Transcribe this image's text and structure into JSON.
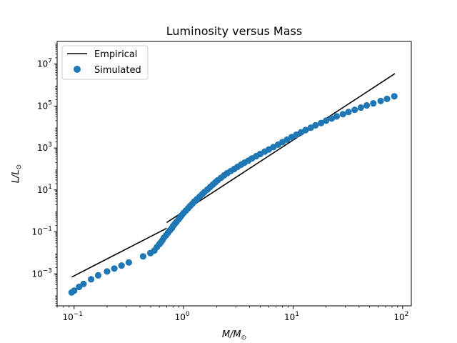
{
  "chart_data": {
    "type": "scatter",
    "title": "Luminosity versus Mass",
    "xlabel": "M/M⊙",
    "ylabel": "L/L⊙",
    "xscale": "log",
    "yscale": "log",
    "xlim": [
      0.07,
      120
    ],
    "ylim": [
      3e-05,
      120000000
    ],
    "x_ticks": [
      {
        "value": 0.1,
        "base": "10",
        "exp": "−1"
      },
      {
        "value": 1,
        "base": "10",
        "exp": "0"
      },
      {
        "value": 10,
        "base": "10",
        "exp": "1"
      },
      {
        "value": 100,
        "base": "10",
        "exp": "2"
      }
    ],
    "y_ticks": [
      {
        "value": 0.001,
        "base": "10",
        "exp": "−3"
      },
      {
        "value": 0.1,
        "base": "10",
        "exp": "−1"
      },
      {
        "value": 10,
        "base": "10",
        "exp": "1"
      },
      {
        "value": 1000,
        "base": "10",
        "exp": "3"
      },
      {
        "value": 100000,
        "base": "10",
        "exp": "5"
      },
      {
        "value": 10000000,
        "base": "10",
        "exp": "7"
      }
    ],
    "legend": {
      "position": "top-left"
    },
    "series": [
      {
        "name": "Empirical",
        "kind": "line",
        "color": "#000000",
        "segments": [
          [
            [
              0.095,
              0.0007
            ],
            [
              0.7,
              0.15
            ]
          ],
          [
            [
              0.7,
              0.28
            ],
            [
              85,
              3500000
            ]
          ]
        ]
      },
      {
        "name": "Simulated",
        "kind": "scatter",
        "color": "#1f77b4",
        "points": [
          [
            0.095,
            0.00013
          ],
          [
            0.1,
            0.00016
          ],
          [
            0.111,
            0.00024
          ],
          [
            0.122,
            0.00033
          ],
          [
            0.143,
            0.00055
          ],
          [
            0.166,
            0.00085
          ],
          [
            0.2,
            0.0013
          ],
          [
            0.233,
            0.0018
          ],
          [
            0.271,
            0.0025
          ],
          [
            0.316,
            0.0035
          ],
          [
            0.427,
            0.0068
          ],
          [
            0.497,
            0.0098
          ],
          [
            0.54,
            0.013
          ],
          [
            0.57,
            0.019
          ],
          [
            0.6,
            0.026
          ],
          [
            0.62,
            0.032
          ],
          [
            0.64,
            0.04
          ],
          [
            0.66,
            0.052
          ],
          [
            0.69,
            0.068
          ],
          [
            0.72,
            0.09
          ],
          [
            0.75,
            0.12
          ],
          [
            0.78,
            0.15
          ],
          [
            0.8,
            0.19
          ],
          [
            0.83,
            0.24
          ],
          [
            0.86,
            0.3
          ],
          [
            0.9,
            0.4
          ],
          [
            0.93,
            0.5
          ],
          [
            0.96,
            0.62
          ],
          [
            1.0,
            0.8
          ],
          [
            1.05,
            1.05
          ],
          [
            1.1,
            1.35
          ],
          [
            1.15,
            1.75
          ],
          [
            1.2,
            2.2
          ],
          [
            1.25,
            2.8
          ],
          [
            1.32,
            3.6
          ],
          [
            1.4,
            4.8
          ],
          [
            1.48,
            6.3
          ],
          [
            1.55,
            8.0
          ],
          [
            1.65,
            10.5
          ],
          [
            1.75,
            14
          ],
          [
            1.85,
            18
          ],
          [
            1.95,
            23
          ],
          [
            2.05,
            29
          ],
          [
            2.2,
            38
          ],
          [
            2.35,
            50
          ],
          [
            2.5,
            63
          ],
          [
            2.7,
            80
          ],
          [
            2.9,
            100
          ],
          [
            3.1,
            125
          ],
          [
            3.35,
            160
          ],
          [
            3.6,
            200
          ],
          [
            3.9,
            250
          ],
          [
            4.2,
            320
          ],
          [
            4.6,
            410
          ],
          [
            5.0,
            520
          ],
          [
            5.5,
            670
          ],
          [
            6.0,
            850
          ],
          [
            6.6,
            1100
          ],
          [
            7.3,
            1450
          ],
          [
            8.0,
            1900
          ],
          [
            8.8,
            2500
          ],
          [
            9.7,
            3300
          ],
          [
            10.7,
            4300
          ],
          [
            11.8,
            5600
          ],
          [
            13.0,
            7200
          ],
          [
            14.5,
            9300
          ],
          [
            16.0,
            12000
          ],
          [
            18.0,
            15500
          ],
          [
            20.0,
            20000
          ],
          [
            22.5,
            25500
          ],
          [
            25.0,
            32000
          ],
          [
            28.5,
            41000
          ],
          [
            32.0,
            52000
          ],
          [
            36.5,
            66000
          ],
          [
            41.5,
            84000
          ],
          [
            47.0,
            107000
          ],
          [
            54.0,
            135000
          ],
          [
            63.0,
            175000
          ],
          [
            72.0,
            220000
          ],
          [
            84.0,
            290000
          ]
        ]
      }
    ]
  }
}
